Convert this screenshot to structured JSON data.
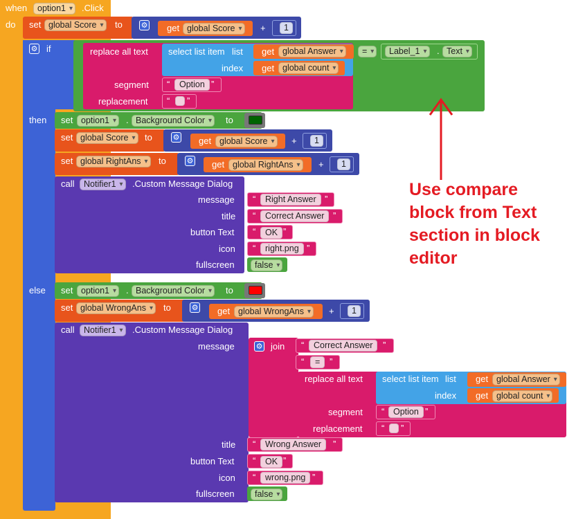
{
  "event": {
    "when": "when",
    "component": "option1",
    "dot_event": ".Click",
    "do": "do"
  },
  "ops": {
    "plus": "+",
    "eq": "=",
    "dot": "."
  },
  "kw": {
    "set": "set",
    "get": "get",
    "to": "to",
    "if": "if",
    "then": "then",
    "else": "else",
    "call": "call"
  },
  "vars": {
    "score": "global Score",
    "answer": "global Answer",
    "count": "global count",
    "right_ans": "global RightAns",
    "wrong_ans": "global WrongAns"
  },
  "numbers": {
    "one": "1"
  },
  "replace": {
    "label": "replace all text",
    "segment": "segment",
    "replacement": "replacement"
  },
  "select": {
    "label": "select list item",
    "list": "list",
    "index": "index"
  },
  "compare": {
    "component": "Label_1",
    "property": "Text"
  },
  "strings": {
    "option": "Option",
    "empty": "",
    "right_answer": "Right Answer",
    "correct_answer": "Correct Answer",
    "ok": "OK",
    "right_png": "right.png",
    "equals": "=",
    "wrong_answer": "Wrong  Answer",
    "wrong_png": "wrong.png"
  },
  "bg": {
    "component": "option1",
    "property": "Background Color",
    "then_color": "#006400",
    "else_color": "#ff0000"
  },
  "notifier": {
    "component": "Notifier1",
    "method": ".Custom Message Dialog",
    "message": "message",
    "title": "title",
    "button_text": "button Text",
    "icon": "icon",
    "fullscreen": "fullscreen",
    "false_value": "false"
  },
  "join": {
    "label": "join"
  },
  "annotation": {
    "line1": "Use compare",
    "line2": "block from Text",
    "line3": "section in block",
    "line4": "editor",
    "color": "#e41b23"
  },
  "colors": {
    "event": "#f6a621",
    "set_var": "#e8541c",
    "get_var": "#f26c27",
    "math": "#3d49a8",
    "control": "#3d63d6",
    "text": "#d91b6b",
    "list": "#43a3e7",
    "component_green": "#4aa53e",
    "component_purple": "#5a39b0"
  }
}
